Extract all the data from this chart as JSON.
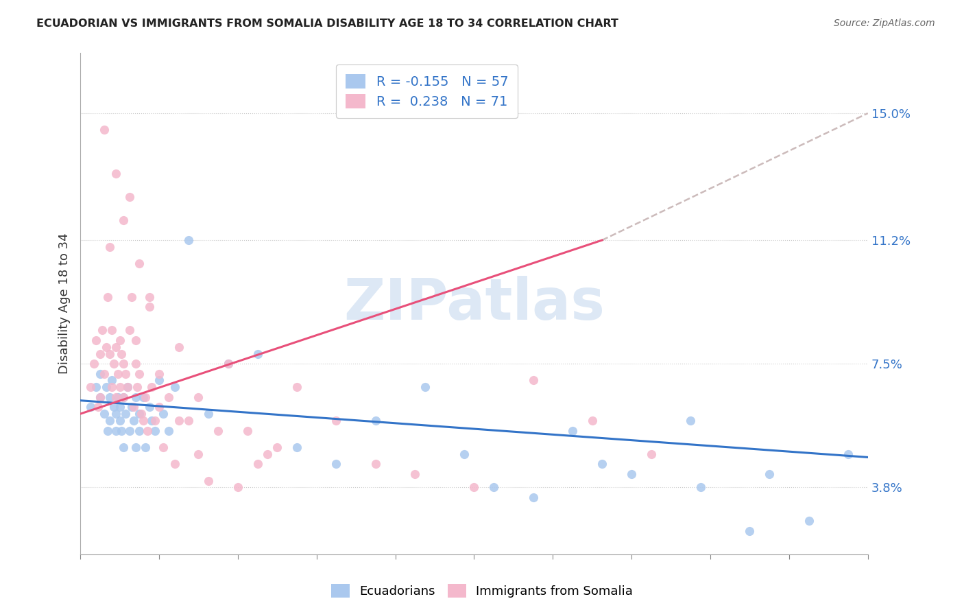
{
  "title": "ECUADORIAN VS IMMIGRANTS FROM SOMALIA DISABILITY AGE 18 TO 34 CORRELATION CHART",
  "source": "Source: ZipAtlas.com",
  "ylabel": "Disability Age 18 to 34",
  "ytick_labels": [
    "3.8%",
    "7.5%",
    "11.2%",
    "15.0%"
  ],
  "ytick_values": [
    0.038,
    0.075,
    0.112,
    0.15
  ],
  "xlim": [
    0.0,
    0.4
  ],
  "ylim": [
    0.018,
    0.168
  ],
  "legend_labels_bottom": [
    "Ecuadorians",
    "Immigrants from Somalia"
  ],
  "blue_color": "#aac8ee",
  "pink_color": "#f4b8cc",
  "blue_line_color": "#3374c8",
  "pink_line_color": "#e8507a",
  "dash_color": "#ccbbbb",
  "watermark_color": "#dde8f5",
  "blue_points_x": [
    0.005,
    0.008,
    0.01,
    0.01,
    0.012,
    0.013,
    0.014,
    0.015,
    0.015,
    0.016,
    0.017,
    0.018,
    0.018,
    0.019,
    0.02,
    0.02,
    0.021,
    0.022,
    0.022,
    0.023,
    0.024,
    0.025,
    0.026,
    0.027,
    0.028,
    0.028,
    0.03,
    0.03,
    0.032,
    0.033,
    0.035,
    0.036,
    0.038,
    0.04,
    0.042,
    0.045,
    0.048,
    0.055,
    0.065,
    0.075,
    0.09,
    0.11,
    0.13,
    0.15,
    0.175,
    0.21,
    0.25,
    0.28,
    0.31,
    0.35,
    0.37,
    0.39,
    0.195,
    0.23,
    0.265,
    0.315,
    0.34
  ],
  "blue_points_y": [
    0.062,
    0.068,
    0.065,
    0.072,
    0.06,
    0.068,
    0.055,
    0.065,
    0.058,
    0.07,
    0.062,
    0.06,
    0.055,
    0.065,
    0.062,
    0.058,
    0.055,
    0.065,
    0.05,
    0.06,
    0.068,
    0.055,
    0.062,
    0.058,
    0.065,
    0.05,
    0.06,
    0.055,
    0.065,
    0.05,
    0.062,
    0.058,
    0.055,
    0.07,
    0.06,
    0.055,
    0.068,
    0.112,
    0.06,
    0.075,
    0.078,
    0.05,
    0.045,
    0.058,
    0.068,
    0.038,
    0.055,
    0.042,
    0.058,
    0.042,
    0.028,
    0.048,
    0.048,
    0.035,
    0.045,
    0.038,
    0.025
  ],
  "pink_points_x": [
    0.005,
    0.007,
    0.008,
    0.009,
    0.01,
    0.01,
    0.011,
    0.012,
    0.013,
    0.014,
    0.015,
    0.015,
    0.016,
    0.016,
    0.017,
    0.018,
    0.018,
    0.019,
    0.02,
    0.02,
    0.021,
    0.022,
    0.022,
    0.023,
    0.024,
    0.025,
    0.026,
    0.027,
    0.028,
    0.028,
    0.029,
    0.03,
    0.031,
    0.032,
    0.033,
    0.034,
    0.035,
    0.036,
    0.038,
    0.04,
    0.042,
    0.045,
    0.048,
    0.05,
    0.055,
    0.06,
    0.065,
    0.075,
    0.085,
    0.095,
    0.11,
    0.13,
    0.15,
    0.17,
    0.2,
    0.23,
    0.26,
    0.29,
    0.012,
    0.018,
    0.022,
    0.025,
    0.03,
    0.035,
    0.04,
    0.05,
    0.06,
    0.07,
    0.08,
    0.09,
    0.1
  ],
  "pink_points_y": [
    0.068,
    0.075,
    0.082,
    0.062,
    0.078,
    0.065,
    0.085,
    0.072,
    0.08,
    0.095,
    0.078,
    0.11,
    0.068,
    0.085,
    0.075,
    0.08,
    0.065,
    0.072,
    0.082,
    0.068,
    0.078,
    0.075,
    0.065,
    0.072,
    0.068,
    0.085,
    0.095,
    0.062,
    0.082,
    0.075,
    0.068,
    0.072,
    0.06,
    0.058,
    0.065,
    0.055,
    0.095,
    0.068,
    0.058,
    0.072,
    0.05,
    0.065,
    0.045,
    0.08,
    0.058,
    0.065,
    0.04,
    0.075,
    0.055,
    0.048,
    0.068,
    0.058,
    0.045,
    0.042,
    0.038,
    0.07,
    0.058,
    0.048,
    0.145,
    0.132,
    0.118,
    0.125,
    0.105,
    0.092,
    0.062,
    0.058,
    0.048,
    0.055,
    0.038,
    0.045,
    0.05
  ],
  "blue_trend_x": [
    0.0,
    0.4
  ],
  "blue_trend_y": [
    0.064,
    0.047
  ],
  "pink_trend_x": [
    0.0,
    0.265
  ],
  "pink_trend_y": [
    0.06,
    0.112
  ],
  "dash_trend_x": [
    0.265,
    0.4
  ],
  "dash_trend_y": [
    0.112,
    0.15
  ]
}
